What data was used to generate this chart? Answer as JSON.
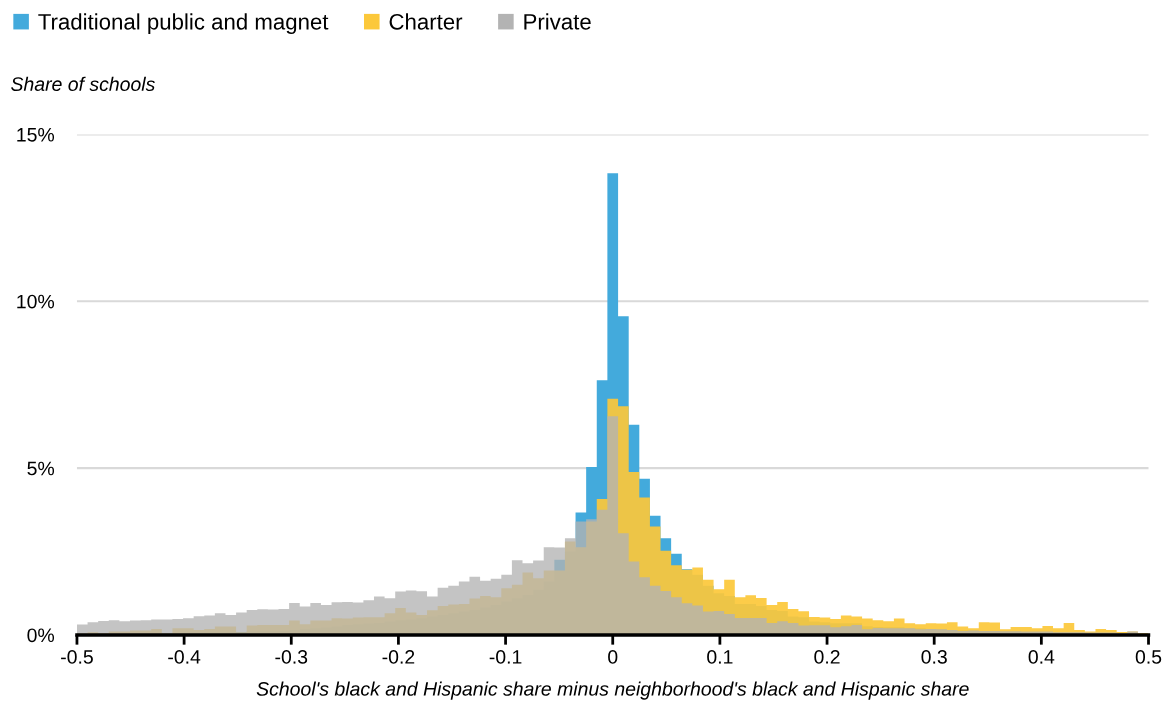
{
  "chart_data": {
    "type": "histogram",
    "xlabel": "School's black and Hispanic share minus neighborhood's black and Hispanic share",
    "ylabel": "Share of schools",
    "bins": [
      -0.5,
      -0.4901,
      -0.4802,
      -0.4703,
      -0.4604,
      -0.4505,
      -0.4406,
      -0.4307,
      -0.4208,
      -0.4109,
      -0.401,
      -0.3911,
      -0.3812,
      -0.3713,
      -0.3614,
      -0.3515,
      -0.3416,
      -0.3317,
      -0.3218,
      -0.3119,
      -0.302,
      -0.2921,
      -0.2822,
      -0.2723,
      -0.2624,
      -0.2525,
      -0.2426,
      -0.2327,
      -0.2228,
      -0.2129,
      -0.203,
      -0.1931,
      -0.1832,
      -0.1733,
      -0.1634,
      -0.1535,
      -0.1436,
      -0.1337,
      -0.1238,
      -0.1139,
      -0.104,
      -0.0941,
      -0.0842,
      -0.0743,
      -0.0644,
      -0.0545,
      -0.0446,
      -0.0347,
      -0.0248,
      -0.0149,
      -0.005,
      0.005,
      0.0149,
      0.0248,
      0.0347,
      0.0446,
      0.0545,
      0.0644,
      0.0743,
      0.0842,
      0.0941,
      0.104,
      0.1139,
      0.1238,
      0.1337,
      0.1436,
      0.1535,
      0.1634,
      0.1733,
      0.1832,
      0.1931,
      0.203,
      0.2129,
      0.2228,
      0.2327,
      0.2426,
      0.2525,
      0.2624,
      0.2723,
      0.2822,
      0.2921,
      0.302,
      0.3119,
      0.3218,
      0.3317,
      0.3416,
      0.3515,
      0.3614,
      0.3713,
      0.3812,
      0.3911,
      0.401,
      0.4109,
      0.4208,
      0.4307,
      0.4406,
      0.4505,
      0.4604,
      0.4703,
      0.4802,
      0.4901,
      0.5
    ],
    "series": [
      {
        "name": "Traditional public and magnet",
        "color": "#43aadc",
        "values": [
          0.03,
          0.03,
          0.04,
          0.04,
          0.04,
          0.05,
          0.05,
          0.05,
          0.05,
          0.06,
          0.07,
          0.07,
          0.08,
          0.08,
          0.09,
          0.09,
          0.1,
          0.11,
          0.11,
          0.12,
          0.15,
          0.18,
          0.2,
          0.22,
          0.25,
          0.3,
          0.32,
          0.34,
          0.36,
          0.4,
          0.44,
          0.46,
          0.5,
          0.55,
          0.6,
          0.65,
          0.7,
          0.75,
          0.82,
          0.9,
          1.0,
          1.1,
          1.2,
          1.35,
          1.6,
          2.25,
          2.5,
          3.67,
          5.03,
          7.63,
          13.84,
          9.55,
          6.3,
          4.68,
          3.57,
          2.9,
          2.43,
          1.97,
          1.8,
          1.47,
          1.25,
          1.17,
          0.93,
          0.93,
          0.87,
          0.75,
          0.72,
          0.55,
          0.53,
          0.4,
          0.38,
          0.35,
          0.35,
          0.35,
          0.26,
          0.24,
          0.23,
          0.23,
          0.2,
          0.2,
          0.18,
          0.17,
          0.15,
          0.14,
          0.13,
          0.12,
          0.11,
          0.1,
          0.1,
          0.09,
          0.09,
          0.08,
          0.08,
          0.07,
          0.07,
          0.06,
          0.06,
          0.05,
          0.05,
          0.05,
          0.03
        ]
      },
      {
        "name": "Charter",
        "color": "#fcc83a",
        "values": [
          0.05,
          0.08,
          0.06,
          0.1,
          0.1,
          0.13,
          0.13,
          0.18,
          0.05,
          0.2,
          0.2,
          0.15,
          0.18,
          0.25,
          0.25,
          0.08,
          0.28,
          0.3,
          0.3,
          0.3,
          0.43,
          0.32,
          0.43,
          0.43,
          0.5,
          0.49,
          0.52,
          0.53,
          0.53,
          0.65,
          0.81,
          0.67,
          0.6,
          0.74,
          0.87,
          0.91,
          0.93,
          1.09,
          1.17,
          1.13,
          1.4,
          1.5,
          1.87,
          1.7,
          1.93,
          1.93,
          2.8,
          2.63,
          3.4,
          4.07,
          7.08,
          6.85,
          4.88,
          4.12,
          3.25,
          2.52,
          2.09,
          1.95,
          2.02,
          1.65,
          1.37,
          1.65,
          1.13,
          1.19,
          1.11,
          0.9,
          0.99,
          0.78,
          0.71,
          0.54,
          0.52,
          0.48,
          0.58,
          0.55,
          0.49,
          0.44,
          0.41,
          0.49,
          0.35,
          0.32,
          0.35,
          0.34,
          0.38,
          0.25,
          0.2,
          0.38,
          0.37,
          0.17,
          0.24,
          0.24,
          0.2,
          0.27,
          0.2,
          0.36,
          0.15,
          0.1,
          0.18,
          0.15,
          0.09,
          0.1,
          0.05
        ]
      },
      {
        "name": "Private",
        "color": "#b3b3b3",
        "values": [
          0.31,
          0.38,
          0.42,
          0.44,
          0.41,
          0.43,
          0.44,
          0.46,
          0.46,
          0.48,
          0.5,
          0.56,
          0.58,
          0.65,
          0.6,
          0.67,
          0.75,
          0.77,
          0.76,
          0.78,
          0.96,
          0.85,
          0.96,
          0.9,
          0.98,
          0.99,
          0.97,
          1.04,
          1.15,
          1.1,
          1.3,
          1.33,
          1.31,
          1.15,
          1.41,
          1.47,
          1.6,
          1.74,
          1.62,
          1.68,
          1.8,
          2.24,
          2.15,
          2.23,
          2.63,
          2.62,
          2.9,
          3.4,
          3.47,
          3.75,
          6.55,
          3.05,
          2.2,
          1.73,
          1.47,
          1.32,
          1.13,
          0.95,
          0.88,
          0.7,
          0.72,
          0.63,
          0.51,
          0.51,
          0.51,
          0.36,
          0.41,
          0.36,
          0.28,
          0.29,
          0.29,
          0.23,
          0.26,
          0.3,
          0.17,
          0.21,
          0.2,
          0.2,
          0.2,
          0.17,
          0.18,
          0.17,
          0.15,
          0.12,
          0.13,
          0.12,
          0.12,
          0.11,
          0.11,
          0.1,
          0.1,
          0.1,
          0.08,
          0.08,
          0.08,
          0.07,
          0.07,
          0.07,
          0.06,
          0.1,
          0.03
        ]
      }
    ],
    "xlim": [
      -0.5,
      0.5
    ],
    "xticks": [
      -0.5,
      -0.4,
      -0.3,
      -0.2,
      -0.1,
      0,
      0.1,
      0.2,
      0.3,
      0.4,
      0.5
    ],
    "ylim": [
      0,
      15
    ],
    "yticks": [
      {
        "value": 0,
        "label": "0%"
      },
      {
        "value": 5,
        "label": "5%"
      },
      {
        "value": 10,
        "label": "10%"
      },
      {
        "value": 15,
        "label": "15%"
      }
    ],
    "grid": "y",
    "legend": "top left"
  }
}
